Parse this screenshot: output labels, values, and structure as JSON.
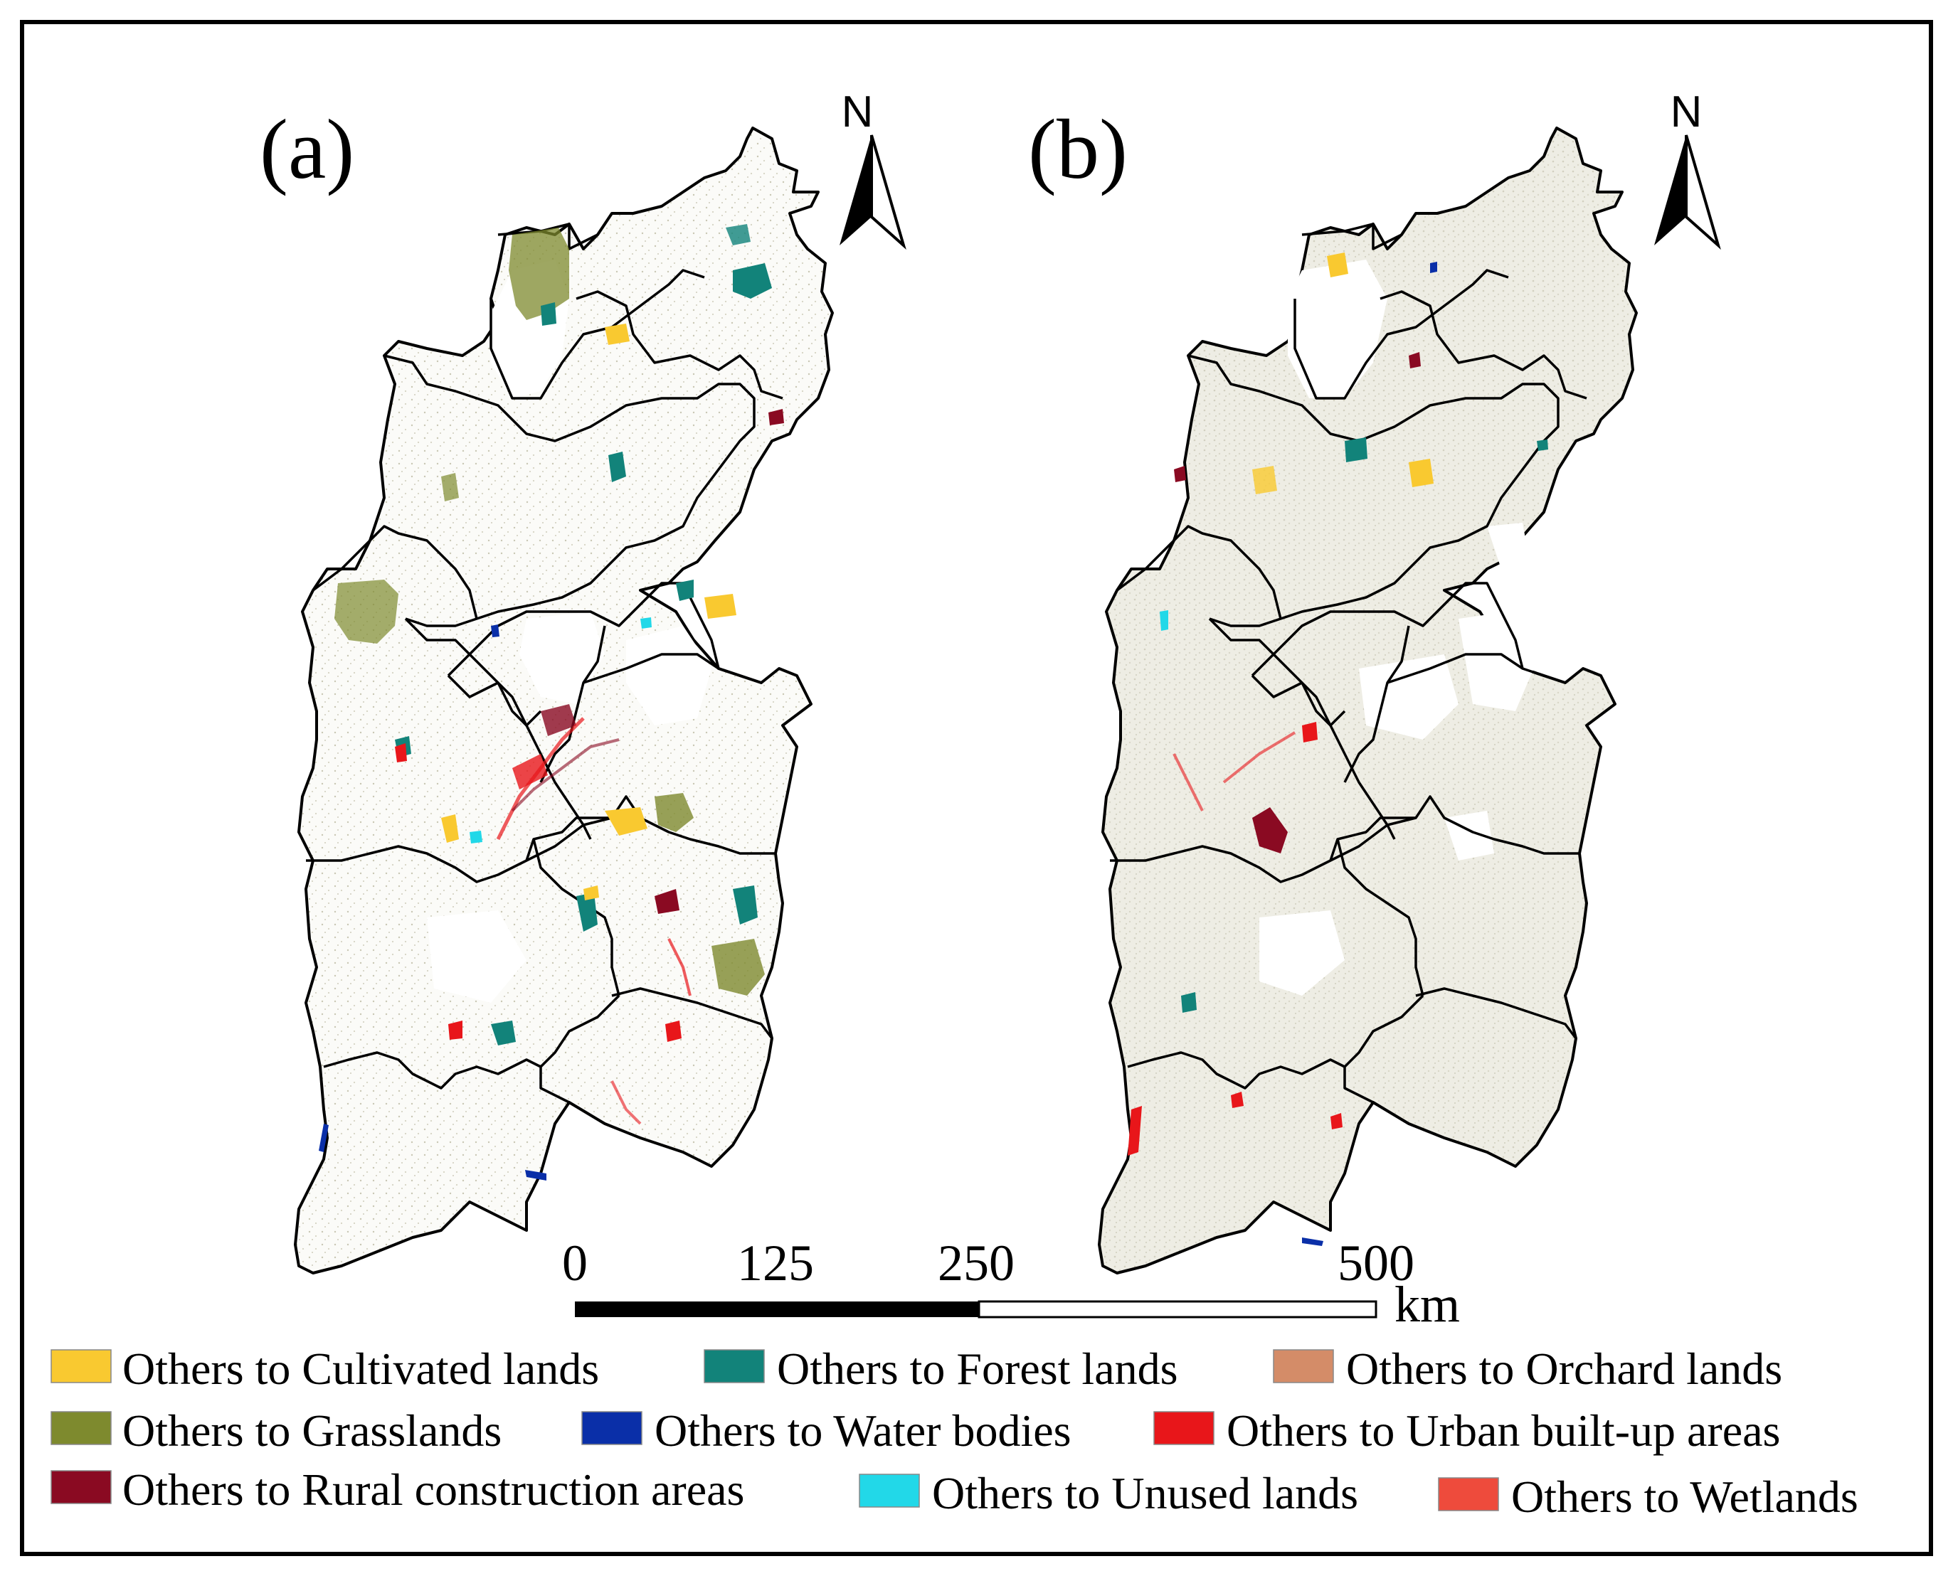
{
  "panels": [
    {
      "label": "(a)"
    },
    {
      "label": "(b)"
    }
  ],
  "north_arrow": {
    "letter": "N",
    "icon": "north-arrow-icon"
  },
  "scale_bar": {
    "ticks": [
      "0",
      "125",
      "250",
      "500"
    ],
    "tick_values_km": [
      0,
      125,
      250,
      500
    ],
    "unit": "km"
  },
  "legend": {
    "items": [
      {
        "label": "Others to Cultivated lands",
        "color": "#F9C930"
      },
      {
        "label": "Others to Forest lands",
        "color": "#12837A"
      },
      {
        "label": "Others to Orchard lands",
        "color": "#D48C68"
      },
      {
        "label": "Others to Grasslands",
        "color": "#7E8A2E"
      },
      {
        "label": "Others to Water bodies",
        "color": "#0A2FA8"
      },
      {
        "label": "Others to Urban built-up areas",
        "color": "#E8161A"
      },
      {
        "label": "Others to Rural construction areas",
        "color": "#8A0A22"
      },
      {
        "label": "Others to Unused lands",
        "color": "#22D8E8"
      },
      {
        "label": "Others to Wetlands",
        "color": "#EE4B3C"
      }
    ]
  },
  "colors": {
    "background": "#FFFFFF",
    "border": "#000000",
    "panel_b_fill": "#EFEEE6",
    "panel_a_fill": "#FBFBF8"
  }
}
